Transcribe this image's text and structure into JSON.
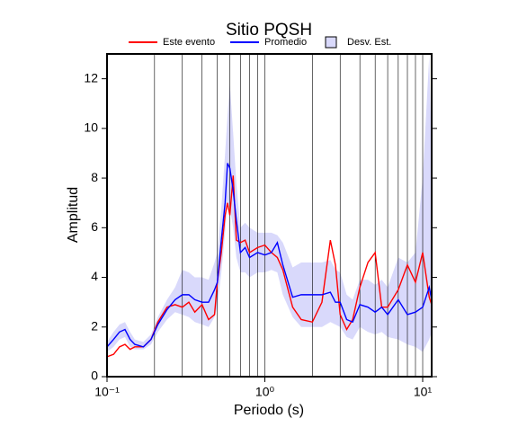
{
  "chart_data": {
    "type": "line",
    "title": "Sitio PQSH",
    "xlabel": "Periodo (s)",
    "ylabel": "Amplitud",
    "xscale": "log",
    "grid": true,
    "xlim": [
      0.1,
      11.4
    ],
    "ylim": [
      0,
      13
    ],
    "xticks": [
      {
        "value": 0.1,
        "label": "10⁻¹"
      },
      {
        "value": 1,
        "label": "10⁰"
      },
      {
        "value": 10,
        "label": "10¹"
      }
    ],
    "xminor": [
      0.2,
      0.3,
      0.4,
      0.5,
      0.6,
      0.7,
      0.8,
      0.9,
      1,
      2,
      3,
      4,
      5,
      6,
      7,
      8,
      9,
      10
    ],
    "yticks": [
      0,
      2,
      4,
      6,
      8,
      10,
      12
    ],
    "x": [
      0.1,
      0.11,
      0.12,
      0.13,
      0.14,
      0.15,
      0.17,
      0.19,
      0.21,
      0.24,
      0.27,
      0.3,
      0.33,
      0.36,
      0.4,
      0.44,
      0.48,
      0.5,
      0.53,
      0.56,
      0.58,
      0.6,
      0.63,
      0.66,
      0.7,
      0.75,
      0.8,
      0.9,
      1.0,
      1.1,
      1.2,
      1.3,
      1.5,
      1.7,
      2.0,
      2.3,
      2.6,
      2.8,
      3.0,
      3.3,
      3.6,
      4.0,
      4.5,
      5.0,
      5.5,
      6.0,
      7.0,
      8.0,
      9.0,
      10.0,
      11.0,
      11.4
    ],
    "series": [
      {
        "name": "Este evento",
        "color": "#ff0000",
        "values": [
          0.8,
          0.9,
          1.2,
          1.3,
          1.1,
          1.2,
          1.2,
          1.5,
          2.2,
          2.8,
          2.9,
          2.8,
          3.0,
          2.6,
          2.9,
          2.3,
          2.5,
          3.8,
          5.0,
          6.5,
          7.0,
          6.5,
          8.1,
          5.5,
          5.4,
          5.5,
          5.0,
          5.2,
          5.3,
          5.0,
          4.8,
          4.3,
          2.8,
          2.3,
          2.2,
          3.0,
          5.5,
          4.5,
          2.5,
          1.9,
          2.3,
          3.6,
          4.6,
          5.0,
          2.8,
          2.8,
          3.5,
          4.5,
          3.8,
          5.0,
          3.2,
          2.9
        ]
      },
      {
        "name": "Promedio",
        "color": "#0000ff",
        "values": [
          1.2,
          1.5,
          1.8,
          1.9,
          1.5,
          1.3,
          1.2,
          1.5,
          2.1,
          2.7,
          3.1,
          3.3,
          3.3,
          3.1,
          3.0,
          3.0,
          3.5,
          3.8,
          5.5,
          7.0,
          8.6,
          8.4,
          7.5,
          6.3,
          5.0,
          5.2,
          4.8,
          5.0,
          4.9,
          5.0,
          5.4,
          4.5,
          3.2,
          3.3,
          3.3,
          3.3,
          3.4,
          3.0,
          3.0,
          2.3,
          2.2,
          2.9,
          2.8,
          2.6,
          2.8,
          2.5,
          3.1,
          2.5,
          2.6,
          2.8,
          3.6,
          3.1
        ]
      }
    ],
    "band": {
      "name": "Desv. Est.",
      "color": "#d9d9fb",
      "lower": [
        1.0,
        1.2,
        1.5,
        1.6,
        1.2,
        1.1,
        1.1,
        1.3,
        1.8,
        2.3,
        2.6,
        2.5,
        2.4,
        2.2,
        2.1,
        2.0,
        2.4,
        2.8,
        4.2,
        5.8,
        7.0,
        6.8,
        6.0,
        4.8,
        4.2,
        4.2,
        4.0,
        4.2,
        4.2,
        4.3,
        4.2,
        3.3,
        2.4,
        2.0,
        2.0,
        2.0,
        2.2,
        2.1,
        2.0,
        1.6,
        1.5,
        2.0,
        1.8,
        1.7,
        1.8,
        1.6,
        1.5,
        1.3,
        1.2,
        1.0,
        1.5,
        1.8
      ],
      "upper": [
        1.4,
        1.8,
        2.1,
        2.2,
        1.8,
        1.5,
        1.4,
        1.7,
        2.4,
        3.1,
        3.6,
        4.3,
        4.2,
        4.0,
        4.0,
        3.9,
        4.6,
        5.0,
        6.8,
        9.0,
        10.5,
        11.8,
        9.8,
        7.8,
        6.0,
        6.2,
        6.0,
        5.8,
        5.8,
        5.8,
        5.7,
        5.4,
        4.4,
        4.6,
        4.6,
        4.6,
        4.7,
        4.3,
        4.2,
        3.3,
        3.1,
        3.9,
        3.9,
        3.7,
        3.9,
        3.6,
        4.8,
        4.6,
        5.0,
        8.0,
        12.9,
        9.0
      ]
    }
  }
}
